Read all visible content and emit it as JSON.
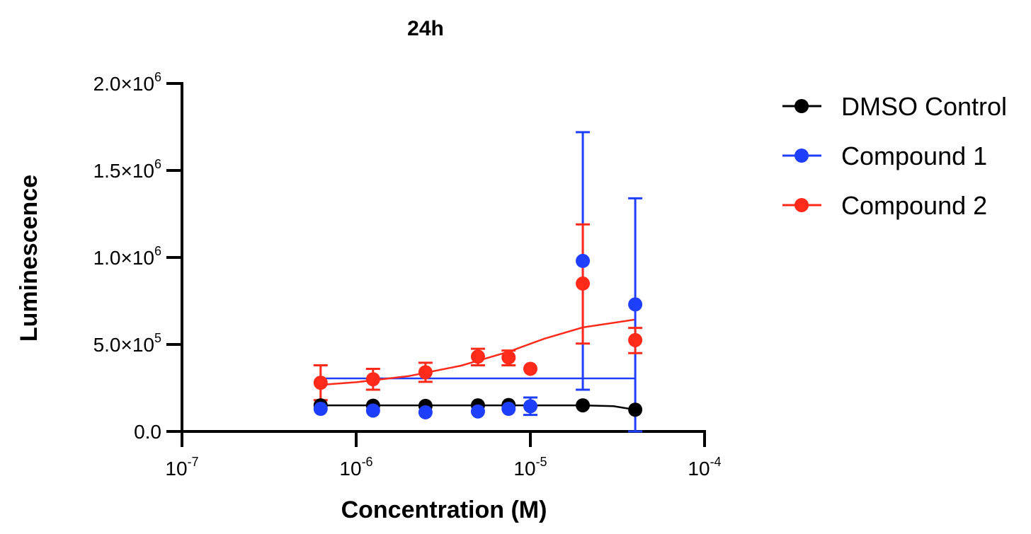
{
  "chart_data": {
    "type": "scatter",
    "title": "24h",
    "xlabel": "Concentration (M)",
    "ylabel": "Luminescence",
    "x_scale": "log",
    "xlim": [
      1e-07,
      0.0001
    ],
    "ylim": [
      0,
      2000000
    ],
    "x_ticks": [
      {
        "value": 1e-07,
        "base": "10",
        "exp": "-7"
      },
      {
        "value": 1e-06,
        "base": "10",
        "exp": "-6"
      },
      {
        "value": 1e-05,
        "base": "10",
        "exp": "-5"
      },
      {
        "value": 0.0001,
        "base": "10",
        "exp": "-4"
      }
    ],
    "y_ticks": [
      {
        "value": 0,
        "mantissa": "0.0",
        "exp": ""
      },
      {
        "value": 500000,
        "mantissa": "5.0×10",
        "exp": "5"
      },
      {
        "value": 1000000,
        "mantissa": "1.0×10",
        "exp": "6"
      },
      {
        "value": 1500000,
        "mantissa": "1.5×10",
        "exp": "6"
      },
      {
        "value": 2000000,
        "mantissa": "2.0×10",
        "exp": "6"
      }
    ],
    "grid": false,
    "legend_position": "top-right",
    "series": [
      {
        "name": "DMSO Control",
        "color": "#000000",
        "points": [
          {
            "x": 6.25e-07,
            "y": 150000
          },
          {
            "x": 1.25e-06,
            "y": 148000
          },
          {
            "x": 2.5e-06,
            "y": 147000
          },
          {
            "x": 5e-06,
            "y": 150000
          },
          {
            "x": 7.5e-06,
            "y": 152000
          },
          {
            "x": 2e-05,
            "y": 150000
          },
          {
            "x": 4e-05,
            "y": 125000
          }
        ],
        "fit": [
          {
            "x": 6.25e-07,
            "y": 150000
          },
          {
            "x": 2e-05,
            "y": 150000
          },
          {
            "x": 3e-05,
            "y": 145000
          },
          {
            "x": 4e-05,
            "y": 125000
          }
        ]
      },
      {
        "name": "Compound 1",
        "color": "#1f3fff",
        "points": [
          {
            "x": 6.25e-07,
            "y": 130000
          },
          {
            "x": 1.25e-06,
            "y": 120000
          },
          {
            "x": 2.5e-06,
            "y": 110000
          },
          {
            "x": 5e-06,
            "y": 115000
          },
          {
            "x": 7.5e-06,
            "y": 130000
          },
          {
            "x": 1e-05,
            "y": 145000,
            "yerr": [
              95000,
              195000
            ]
          },
          {
            "x": 2e-05,
            "y": 980000,
            "yerr": [
              240000,
              1720000
            ]
          },
          {
            "x": 4e-05,
            "y": 730000,
            "yerr": [
              0,
              1340000
            ]
          }
        ],
        "fit": [
          {
            "x": 6.25e-07,
            "y": 305000
          },
          {
            "x": 4e-05,
            "y": 305000
          }
        ]
      },
      {
        "name": "Compound 2",
        "color": "#ff2a1a",
        "points": [
          {
            "x": 6.25e-07,
            "y": 280000,
            "yerr": [
              180000,
              380000
            ]
          },
          {
            "x": 1.25e-06,
            "y": 300000,
            "yerr": [
              240000,
              360000
            ]
          },
          {
            "x": 2.5e-06,
            "y": 340000,
            "yerr": [
              285000,
              395000
            ]
          },
          {
            "x": 5e-06,
            "y": 430000,
            "yerr": [
              380000,
              475000
            ]
          },
          {
            "x": 7.5e-06,
            "y": 425000,
            "yerr": [
              380000,
              465000
            ]
          },
          {
            "x": 1e-05,
            "y": 360000
          },
          {
            "x": 2e-05,
            "y": 850000,
            "yerr": [
              505000,
              1190000
            ]
          },
          {
            "x": 4e-05,
            "y": 525000,
            "yerr": [
              450000,
              595000
            ]
          }
        ],
        "fit": [
          {
            "x": 6.25e-07,
            "y": 268000
          },
          {
            "x": 1e-06,
            "y": 283000
          },
          {
            "x": 2e-06,
            "y": 318000
          },
          {
            "x": 4e-06,
            "y": 378000
          },
          {
            "x": 7.5e-06,
            "y": 458000
          },
          {
            "x": 1.2e-05,
            "y": 533000
          },
          {
            "x": 2e-05,
            "y": 598000
          },
          {
            "x": 4e-05,
            "y": 643000
          }
        ]
      }
    ]
  }
}
